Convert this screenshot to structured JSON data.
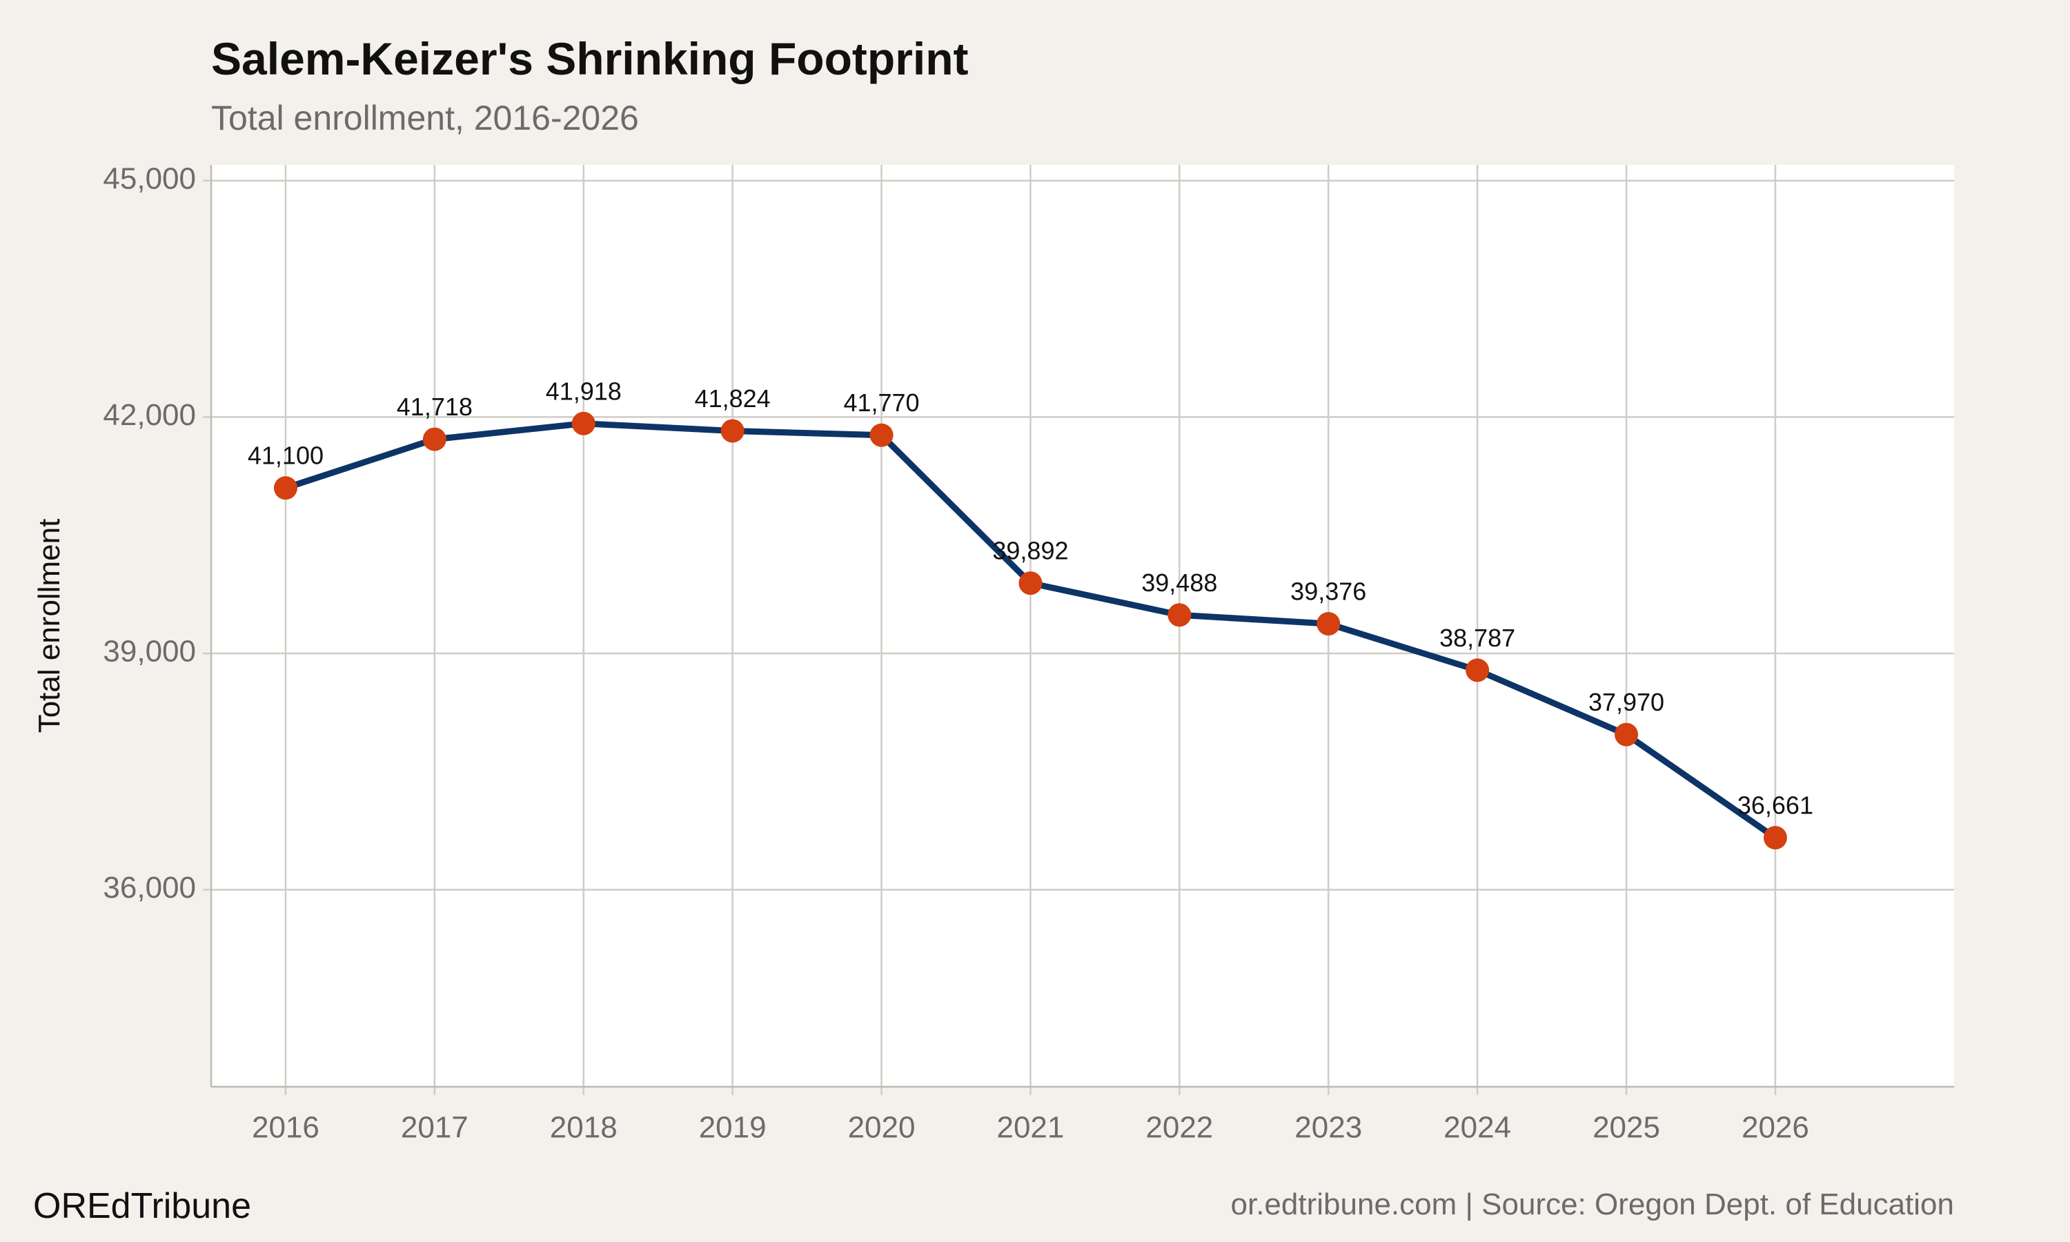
{
  "chart_data": {
    "type": "line",
    "title": "Salem-Keizer's Shrinking Footprint",
    "subtitle": "Total enrollment, 2016-2026",
    "y_label": "Total enrollment",
    "brand": "OREdTribune",
    "source": "or.edtribune.com | Source: Oregon Dept. of Education",
    "x": [
      2016,
      2017,
      2018,
      2019,
      2020,
      2021,
      2022,
      2023,
      2024,
      2025,
      2026
    ],
    "series": [
      {
        "name": "Total enrollment",
        "color": "#0d3466",
        "marker_color": "#d4400f",
        "values": [
          41100,
          41718,
          41918,
          41824,
          41770,
          39892,
          39488,
          39376,
          38787,
          37970,
          36661
        ],
        "value_labels": [
          "41,100",
          "41,718",
          "41,918",
          "41,824",
          "41,770",
          "39,892",
          "39,488",
          "39,376",
          "38,787",
          "37,970",
          "36,661"
        ]
      }
    ],
    "xlim": [
      2015.5,
      2027.2
    ],
    "xticks": [
      2016,
      2017,
      2018,
      2019,
      2020,
      2021,
      2022,
      2023,
      2024,
      2025,
      2026
    ],
    "ylim": [
      33500,
      45200
    ],
    "yticks": [
      {
        "value": 36000,
        "label": "36,000"
      },
      {
        "value": 39000,
        "label": "39,000"
      },
      {
        "value": 42000,
        "label": "42,000"
      },
      {
        "value": 45000,
        "label": "45,000"
      }
    ],
    "grid": true
  }
}
